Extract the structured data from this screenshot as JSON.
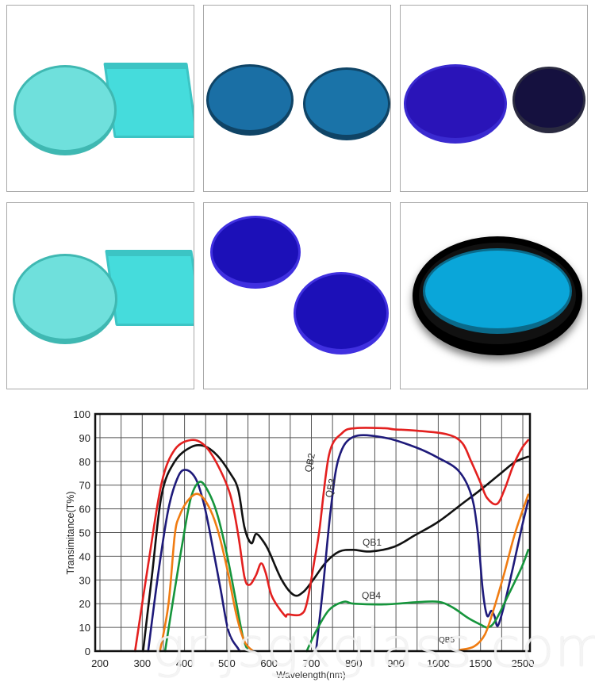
{
  "photos": [
    {
      "name": "cyan-round-and-square-filter-glass",
      "colors": [
        "#6fe0dc",
        "#45dcdc"
      ]
    },
    {
      "name": "steel-blue-round-filters",
      "colors": [
        "#1a6fa5",
        "#1a73a8"
      ]
    },
    {
      "name": "blue-and-dark-round-filters",
      "colors": [
        "#2a14b8",
        "#15113f"
      ]
    },
    {
      "name": "cyan-round-and-square-filter-glass",
      "colors": [
        "#6fe0dc",
        "#45dcdc"
      ]
    },
    {
      "name": "cobalt-blue-round-filters",
      "colors": [
        "#1c10b8",
        "#1c10b8"
      ]
    },
    {
      "name": "mounted-cyan-filter-in-black-ring",
      "colors": [
        "#0aa6d9",
        "#111111"
      ]
    }
  ],
  "watermark": "gr.jsgxglass.com",
  "chart_data": {
    "type": "line",
    "title": "",
    "xlabel": "Wavelength(nm)",
    "ylabel": "Transimitance(T%)",
    "x_ticks": [
      200,
      300,
      400,
      500,
      600,
      700,
      800,
      900,
      1000,
      1500,
      2500
    ],
    "x_tick_labels": [
      "200",
      "300",
      "400",
      "500",
      "600",
      "700",
      "800",
      "900",
      "1000",
      "1500",
      "2500"
    ],
    "x_scale": "nonlinear (1000-1500 and 1500-2500 compressed to one division each)",
    "y_ticks": [
      0,
      10,
      20,
      30,
      40,
      50,
      60,
      70,
      80,
      90,
      100
    ],
    "y_tick_labels": [
      "0",
      "10",
      "20",
      "30",
      "40",
      "50",
      "60",
      "70",
      "80",
      "90",
      "100"
    ],
    "ylim": [
      0,
      100
    ],
    "grid": true,
    "legend": "inline labels",
    "series": [
      {
        "name": "QB1",
        "color": "#111111",
        "segments": [
          [
            [
              302,
              0
            ],
            [
              323,
              32
            ],
            [
              346,
              66
            ],
            [
              377,
              80
            ],
            [
              415,
              86
            ],
            [
              446,
              86.5
            ],
            [
              477,
              82.6
            ],
            [
              508,
              75
            ],
            [
              527,
              68
            ],
            [
              542,
              52
            ],
            [
              558,
              45.5
            ],
            [
              569,
              49.4
            ],
            [
              585,
              46.6
            ],
            [
              600,
              42
            ],
            [
              630,
              30
            ],
            [
              659,
              23.6
            ],
            [
              681,
              25
            ],
            [
              704,
              30
            ],
            [
              735,
              37.6
            ],
            [
              766,
              42
            ],
            [
              800,
              42.7
            ],
            [
              839,
              42
            ],
            [
              896,
              44
            ],
            [
              946,
              49
            ],
            [
              1000,
              54.5
            ],
            [
              1278,
              62
            ],
            [
              1500,
              68
            ],
            [
              1962,
              74.7
            ],
            [
              2321,
              79.8
            ],
            [
              2628,
              82
            ]
          ]
        ]
      },
      {
        "name": "QB2",
        "color": "#e3201f",
        "segments": [
          [
            [
              283,
              0
            ],
            [
              315,
              37.6
            ],
            [
              346,
              71
            ],
            [
              377,
              85
            ],
            [
              415,
              89
            ],
            [
              446,
              87
            ],
            [
              477,
              79
            ],
            [
              508,
              66
            ],
            [
              527,
              49
            ],
            [
              542,
              31
            ],
            [
              554,
              28
            ],
            [
              569,
              32
            ],
            [
              581,
              37
            ],
            [
              592,
              33
            ],
            [
              607,
              23
            ],
            [
              637,
              15
            ],
            [
              644,
              15.5
            ],
            [
              674,
              15.4
            ],
            [
              689,
              20
            ],
            [
              707,
              38
            ],
            [
              719,
              51
            ],
            [
              742,
              83
            ],
            [
              773,
              92
            ],
            [
              804,
              94
            ],
            [
              873,
              94
            ],
            [
              896,
              93.5
            ],
            [
              946,
              93
            ],
            [
              1093,
              91.5
            ],
            [
              1278,
              88
            ],
            [
              1389,
              80
            ],
            [
              1500,
              71
            ],
            [
              1654,
              64.6
            ],
            [
              1885,
              62
            ],
            [
              2064,
              68
            ],
            [
              2269,
              78
            ],
            [
              2474,
              85.4
            ],
            [
              2628,
              89
            ]
          ]
        ]
      },
      {
        "name": "QB3",
        "color": "#1e1a7a",
        "segments": [
          [
            [
              314,
              0
            ],
            [
              338,
              33
            ],
            [
              362,
              60
            ],
            [
              385,
              73.6
            ],
            [
              404,
              76.4
            ],
            [
              427,
              72.5
            ],
            [
              446,
              62
            ],
            [
              465,
              45.5
            ],
            [
              485,
              26.4
            ],
            [
              504,
              8.4
            ],
            [
              527,
              1
            ],
            [
              532,
              0
            ]
          ],
          [
            [
              711,
              0
            ],
            [
              727,
              26
            ],
            [
              746,
              60
            ],
            [
              765,
              81.5
            ],
            [
              800,
              90.4
            ],
            [
              873,
              90
            ],
            [
              946,
              86
            ],
            [
              1000,
              81.5
            ],
            [
              1241,
              76
            ],
            [
              1389,
              66
            ],
            [
              1463,
              51
            ],
            [
              1551,
              26
            ],
            [
              1654,
              15
            ],
            [
              1756,
              17
            ],
            [
              1833,
              14.6
            ],
            [
              1910,
              10.7
            ],
            [
              2064,
              19.7
            ],
            [
              2269,
              35.4
            ],
            [
              2474,
              52
            ],
            [
              2628,
              63.5
            ]
          ]
        ]
      },
      {
        "name": "QB4",
        "color": "#16953c",
        "segments": [
          [
            [
              354,
              0
            ],
            [
              377,
              26
            ],
            [
              396,
              46.6
            ],
            [
              415,
              64.6
            ],
            [
              435,
              71.3
            ],
            [
              454,
              68
            ],
            [
              477,
              58
            ],
            [
              500,
              41
            ],
            [
              523,
              19.7
            ],
            [
              538,
              6
            ],
            [
              550,
              0
            ]
          ],
          [
            [
              689,
              0
            ],
            [
              711,
              8.4
            ],
            [
              742,
              17.4
            ],
            [
              777,
              20.8
            ],
            [
              800,
              20
            ],
            [
              873,
              19.7
            ],
            [
              946,
              20.6
            ],
            [
              1000,
              20.8
            ],
            [
              1167,
              18.5
            ],
            [
              1352,
              14
            ],
            [
              1500,
              11.2
            ],
            [
              1679,
              10
            ],
            [
              1859,
              13
            ],
            [
              2167,
              24
            ],
            [
              2474,
              35.4
            ],
            [
              2628,
              42.7
            ]
          ]
        ]
      },
      {
        "name": "QB5",
        "color": "#f07c12",
        "segments": [
          [
            [
              342,
              0
            ],
            [
              362,
              19.7
            ],
            [
              377,
              49
            ],
            [
              388,
              57
            ],
            [
              408,
              63.5
            ],
            [
              431,
              66.3
            ],
            [
              454,
              62
            ],
            [
              477,
              52
            ],
            [
              500,
              35.4
            ],
            [
              523,
              15
            ],
            [
              542,
              4
            ],
            [
              562,
              0
            ]
          ],
          [
            [
              1259,
              0.5
            ],
            [
              1426,
              2
            ],
            [
              1603,
              7
            ],
            [
              1808,
              17.4
            ],
            [
              2064,
              33
            ],
            [
              2321,
              50
            ],
            [
              2628,
              66
            ]
          ]
        ]
      }
    ]
  }
}
